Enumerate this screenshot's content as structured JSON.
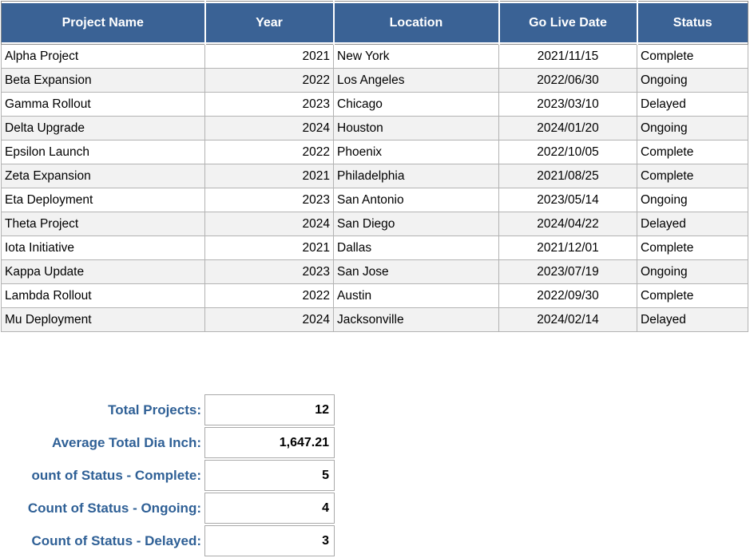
{
  "table": {
    "headers": [
      "Project Name",
      "Year",
      "Location",
      "Go Live Date",
      "Status"
    ],
    "column_keys": [
      "project-name",
      "year",
      "location",
      "go-live-date",
      "status"
    ],
    "column_aligns": [
      "left",
      "right",
      "left",
      "center",
      "left"
    ],
    "rows": [
      [
        "Alpha Project",
        "2021",
        "New York",
        "2021/11/15",
        "Complete"
      ],
      [
        "Beta Expansion",
        "2022",
        "Los Angeles",
        "2022/06/30",
        "Ongoing"
      ],
      [
        "Gamma Rollout",
        "2023",
        "Chicago",
        "2023/03/10",
        "Delayed"
      ],
      [
        "Delta Upgrade",
        "2024",
        "Houston",
        "2024/01/20",
        "Ongoing"
      ],
      [
        "Epsilon Launch",
        "2022",
        "Phoenix",
        "2022/10/05",
        "Complete"
      ],
      [
        "Zeta Expansion",
        "2021",
        "Philadelphia",
        "2021/08/25",
        "Complete"
      ],
      [
        "Eta Deployment",
        "2023",
        "San Antonio",
        "2023/05/14",
        "Ongoing"
      ],
      [
        "Theta Project",
        "2024",
        "San Diego",
        "2024/04/22",
        "Delayed"
      ],
      [
        "Iota Initiative",
        "2021",
        "Dallas",
        "2021/12/01",
        "Complete"
      ],
      [
        "Kappa Update",
        "2023",
        "San Jose",
        "2023/07/19",
        "Ongoing"
      ],
      [
        "Lambda Rollout",
        "2022",
        "Austin",
        "2022/09/30",
        "Complete"
      ],
      [
        "Mu Deployment",
        "2024",
        "Jacksonville",
        "2024/02/14",
        "Delayed"
      ]
    ]
  },
  "summary": {
    "items": [
      {
        "key": "total-projects",
        "label": "Total Projects:",
        "value": "12"
      },
      {
        "key": "average-total-dia-inch",
        "label": "Average Total Dia Inch:",
        "value": "1,647.21"
      },
      {
        "key": "count-status-complete",
        "label": "ount of Status - Complete:",
        "value": "5"
      },
      {
        "key": "count-status-ongoing",
        "label": "Count of Status - Ongoing:",
        "value": "4"
      },
      {
        "key": "count-status-delayed",
        "label": "Count of Status - Delayed:",
        "value": "3"
      }
    ]
  },
  "colors": {
    "header_bg": "#3A6295",
    "header_text": "#FFFFFF",
    "row_band_bg": "#F2F2F2",
    "grid_border": "#B3B3B3",
    "outer_border": "#8E8E8E",
    "summary_label_text": "#2F6096",
    "value_box_border": "#A9A9A9",
    "body_text": "#000000"
  }
}
